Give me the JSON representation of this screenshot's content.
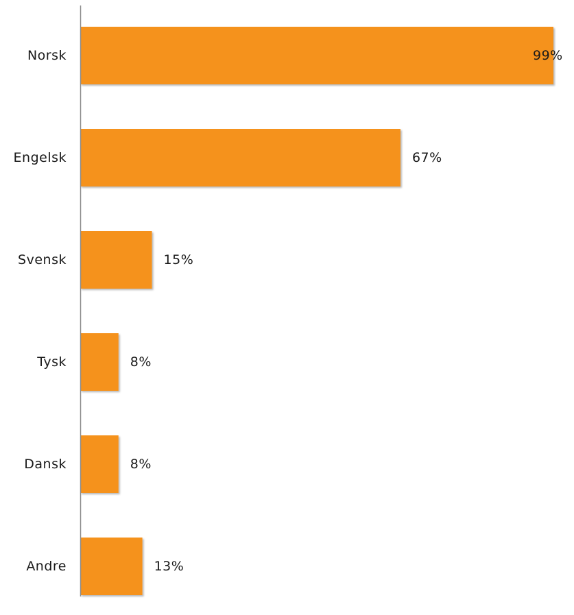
{
  "chart_data": {
    "type": "bar",
    "orientation": "horizontal",
    "categories": [
      "Norsk",
      "Engelsk",
      "Svensk",
      "Tysk",
      "Dansk",
      "Andre"
    ],
    "values": [
      99,
      67,
      15,
      8,
      8,
      13
    ],
    "value_labels": [
      "99%",
      "67%",
      "15%",
      "8%",
      "8%",
      "13%"
    ],
    "xlim": [
      0,
      99
    ],
    "grid": false,
    "legend": "none",
    "bar_color": "#f5921e"
  }
}
